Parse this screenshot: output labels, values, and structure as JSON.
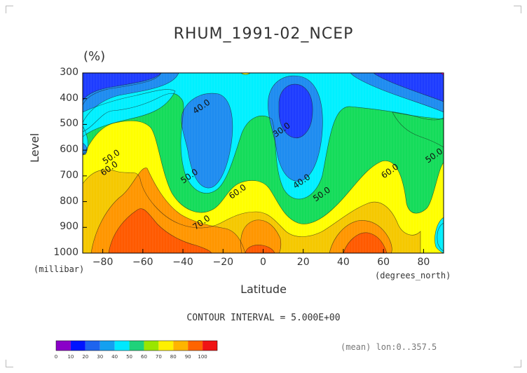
{
  "figure": {
    "title": "RHUM_1991-02_NCEP",
    "units": "(%)",
    "y_axis_label": "Level",
    "y_axis_units": "(millibar)",
    "x_axis_label": "Latitude",
    "x_axis_units": "(degrees_north)",
    "contour_interval_text": "CONTOUR INTERVAL = 5.000E+00",
    "mean_text": "(mean) lon:0..357.5"
  },
  "chart_data": {
    "type": "heatmap",
    "title": "RHUM_1991-02_NCEP",
    "xlabel": "Latitude",
    "ylabel": "Level",
    "x_units": "(degrees_north)",
    "y_units": "(millibar)",
    "xlim": [
      -90,
      90
    ],
    "ylim": [
      1000,
      300
    ],
    "x_ticks": [
      -80,
      -60,
      -40,
      -20,
      0,
      20,
      40,
      60,
      80
    ],
    "x_tick_labels": [
      "−80",
      "−60",
      "−40",
      "−20",
      "0",
      "20",
      "40",
      "60",
      "80"
    ],
    "y_ticks": [
      300,
      400,
      500,
      600,
      700,
      800,
      900,
      1000
    ],
    "y_tick_labels": [
      "300",
      "400",
      "500",
      "600",
      "700",
      "800",
      "900",
      "1000"
    ],
    "contour_interval": 5,
    "contour_labels": [
      {
        "text": "40.0",
        "lat": -30,
        "level": 440
      },
      {
        "text": "30.0",
        "lat": 10,
        "level": 530
      },
      {
        "text": "50.0",
        "lat": -75,
        "level": 635
      },
      {
        "text": "60.0",
        "lat": -76,
        "level": 680
      },
      {
        "text": "50.0",
        "lat": -36,
        "level": 710
      },
      {
        "text": "60.0",
        "lat": -12,
        "level": 770
      },
      {
        "text": "40.0",
        "lat": 20,
        "level": 730
      },
      {
        "text": "50.0",
        "lat": 30,
        "level": 780
      },
      {
        "text": "60.0",
        "lat": 64,
        "level": 690
      },
      {
        "text": "50.0",
        "lat": 86,
        "level": 630
      },
      {
        "text": "70.0",
        "lat": -30,
        "level": 890
      }
    ],
    "colorbar": {
      "boundaries": [
        0,
        10,
        20,
        30,
        40,
        50,
        60,
        70,
        80,
        90,
        100
      ],
      "colors": [
        "#8a00c8",
        "#0014ff",
        "#1e64ee",
        "#14a0f0",
        "#00e8ff",
        "#1fd27a",
        "#9ae600",
        "#fff000",
        "#ffb400",
        "#ff6400",
        "#f01414"
      ]
    },
    "fill_colors": {
      "deep_blue": "#1e3cff",
      "blue": "#1e8cf0",
      "cyan": "#00f0ff",
      "green": "#14dc5a",
      "yellow": "#ffff00",
      "gold": "#f5c800",
      "orange": "#ff9600",
      "red_orange": "#ff5a00",
      "magenta": "#ff00c0"
    },
    "grid": false
  }
}
